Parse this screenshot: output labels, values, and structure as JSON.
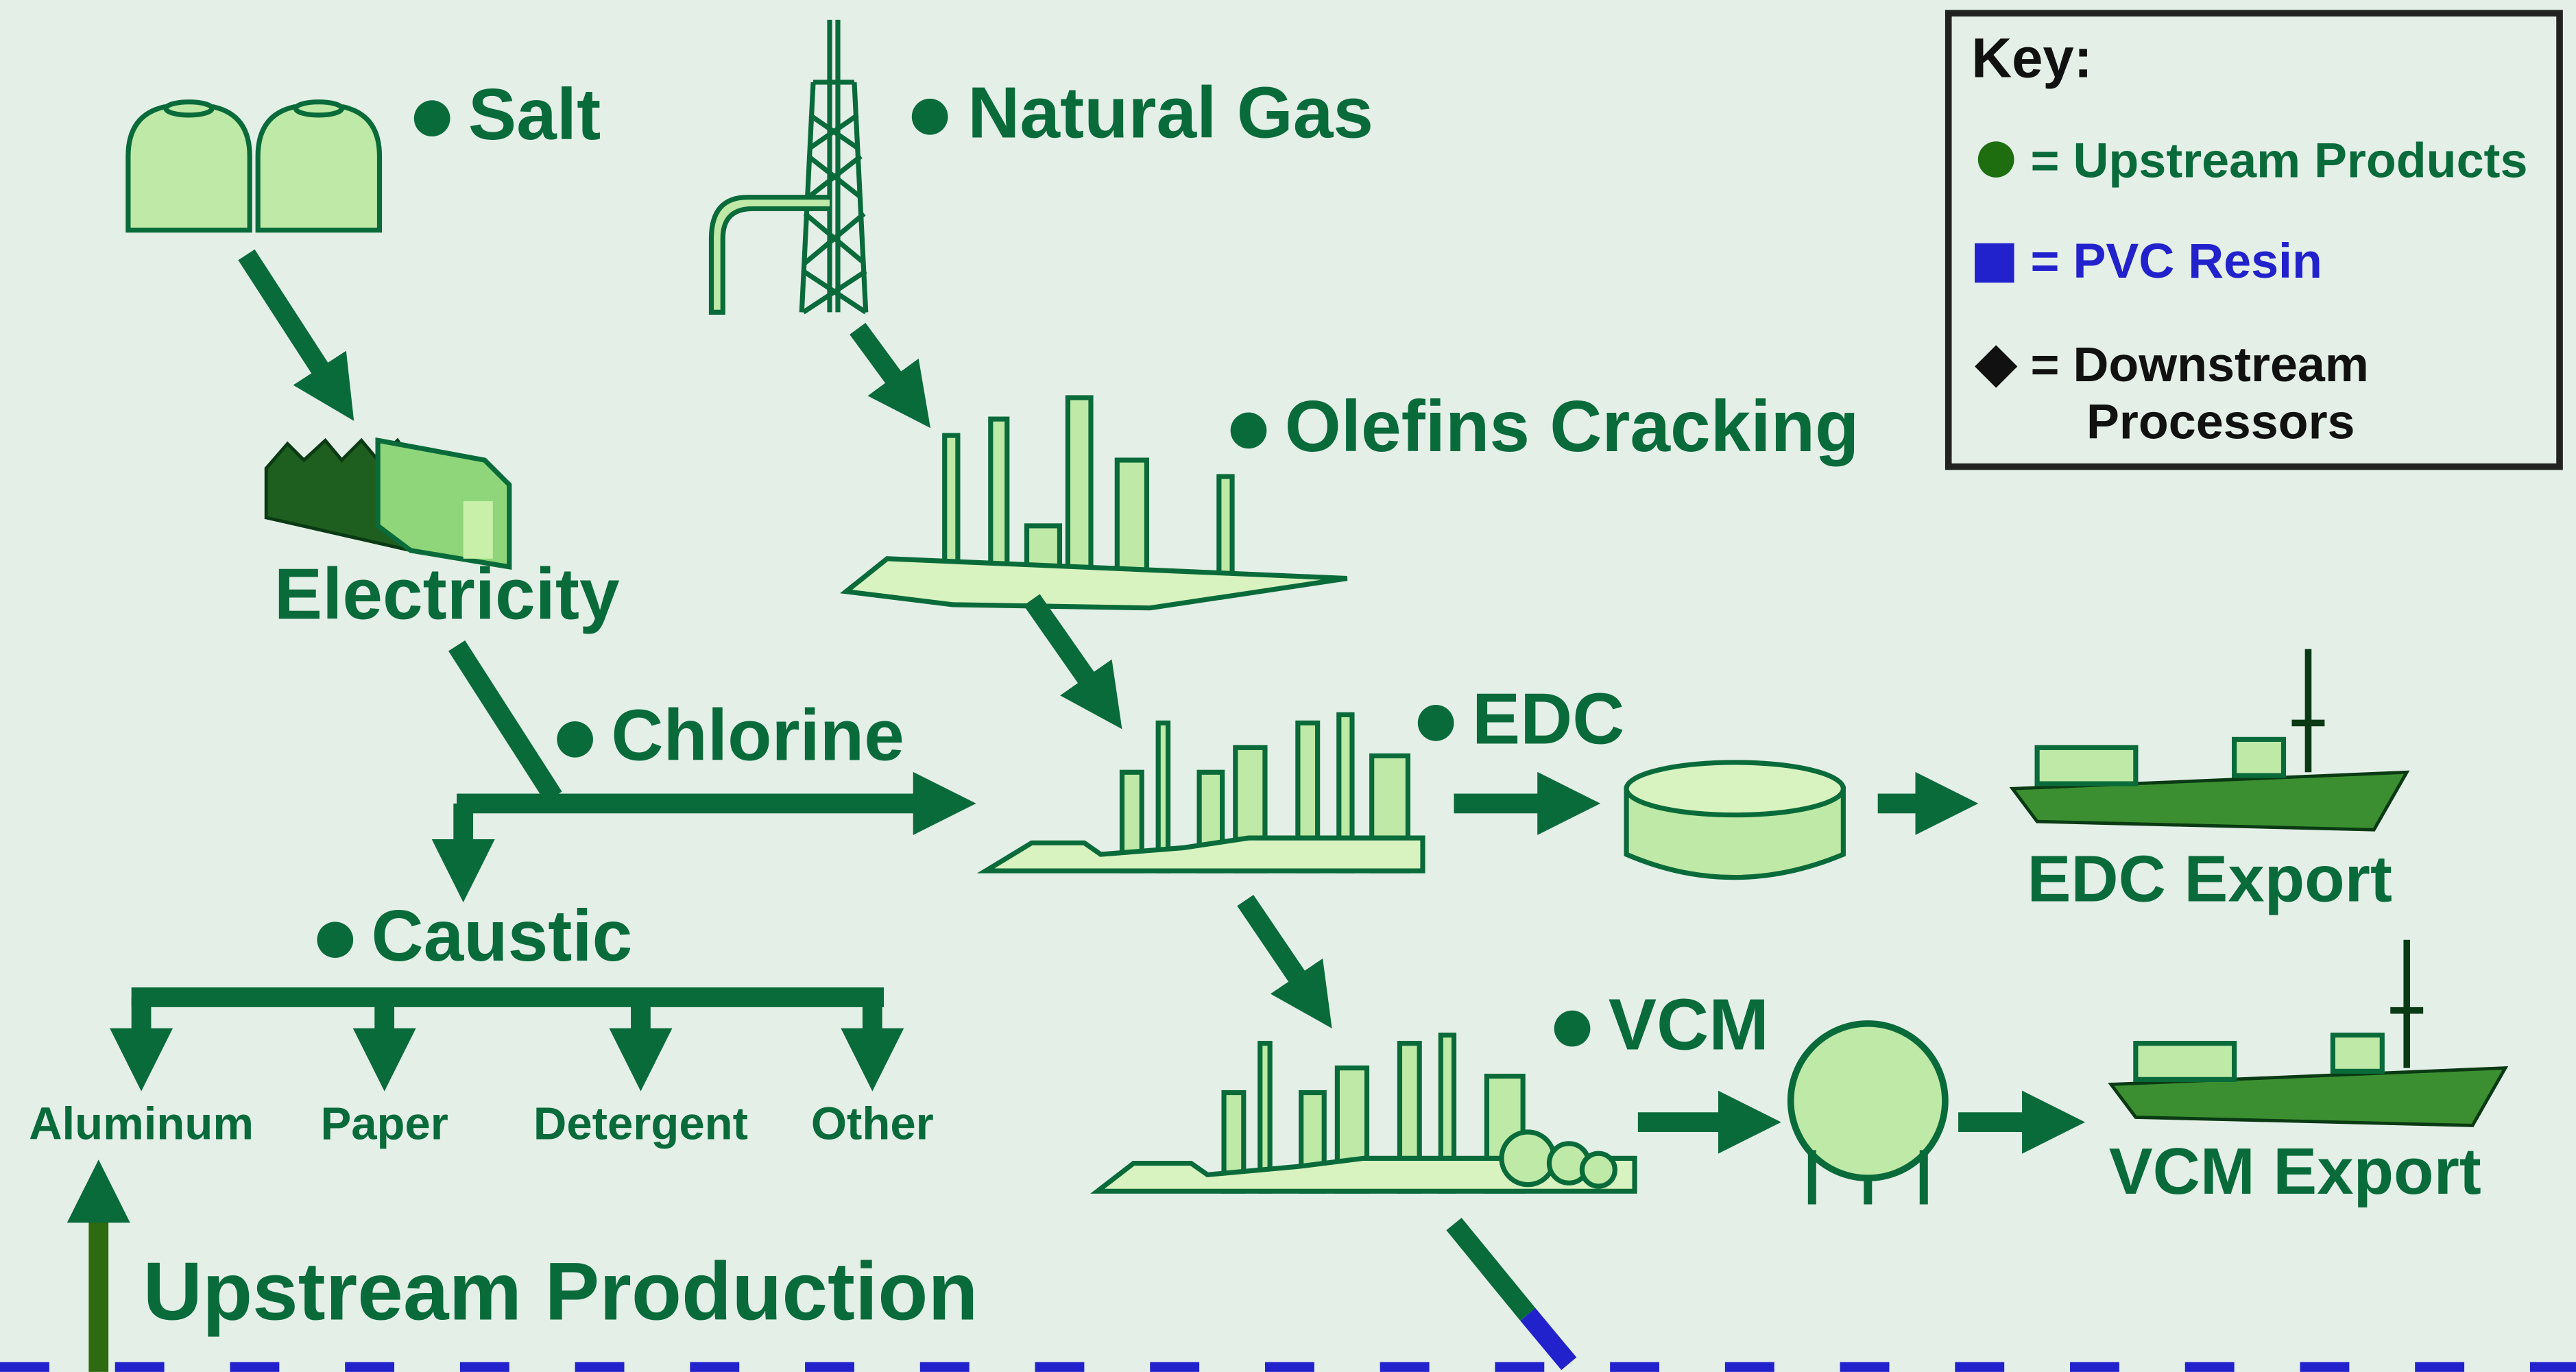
{
  "nodes": [
    {
      "label": "Salt"
    },
    {
      "label": "Natural Gas"
    },
    {
      "label": "Electricity"
    },
    {
      "label": "Olefins Cracking"
    },
    {
      "label": "Chlorine"
    },
    {
      "label": "EDC"
    },
    {
      "label": "Caustic"
    },
    {
      "label": "EDC Export"
    },
    {
      "label": "VCM"
    },
    {
      "label": "VCM Export"
    }
  ],
  "caustic_uses": [
    "Aluminum",
    "Paper",
    "Detergent",
    "Other"
  ],
  "section": "Upstream Production",
  "key": {
    "title": "Key:",
    "upstream": "= Upstream Products",
    "resin": "= PVC Resin",
    "downstream": [
      "= Downstream",
      "Processors"
    ]
  }
}
